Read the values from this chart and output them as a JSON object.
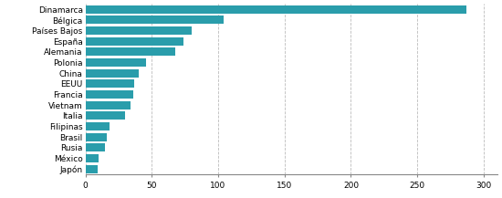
{
  "countries": [
    "Dinamarca",
    "Bélgica",
    "Países Bajos",
    "España",
    "Alemania",
    "Polonia",
    "China",
    "EEUU",
    "Francia",
    "Vietnam",
    "Italia",
    "Filipinas",
    "Brasil",
    "Rusia",
    "México",
    "Japón"
  ],
  "values": [
    287,
    104,
    80,
    74,
    68,
    46,
    40,
    37,
    36,
    34,
    30,
    18,
    16,
    15,
    10,
    9
  ],
  "bar_color": "#2A9DAB",
  "background_color": "#ffffff",
  "xlim": [
    0,
    310
  ],
  "xticks": [
    0,
    50,
    100,
    150,
    200,
    250,
    300
  ],
  "grid_color": "#bbbbbb",
  "tick_fontsize": 6.5,
  "label_fontsize": 6.5
}
